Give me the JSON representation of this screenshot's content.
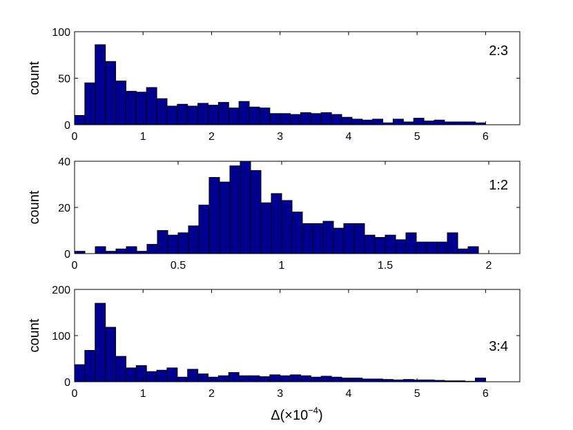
{
  "figure": {
    "xlabel_main": "Δ(×10",
    "xlabel_exp": "−4",
    "xlabel_close": ")"
  },
  "chart_data": [
    {
      "type": "bar",
      "annotation": "2:3",
      "ylabel": "count",
      "xlim": [
        0,
        6.5
      ],
      "ylim": [
        0,
        100
      ],
      "xticks": [
        0,
        1,
        2,
        3,
        4,
        5,
        6
      ],
      "xtick_labels": [
        "0",
        "1",
        "2",
        "3",
        "4",
        "5",
        "6"
      ],
      "yticks": [
        0,
        50,
        100
      ],
      "ytick_labels": [
        "0",
        "50",
        "100"
      ],
      "bin_start": 0,
      "bin_width": 0.15,
      "values": [
        10,
        45,
        86,
        68,
        47,
        36,
        35,
        40,
        28,
        20,
        22,
        20,
        23,
        21,
        24,
        18,
        25,
        19,
        18,
        12,
        12,
        11,
        13,
        12,
        13,
        11,
        8,
        6,
        5,
        6,
        2,
        6,
        3,
        7,
        4,
        5,
        3,
        3,
        3,
        2
      ],
      "color": "#00008f",
      "edgecolor": "#000000"
    },
    {
      "type": "bar",
      "annotation": "1:2",
      "ylabel": "count",
      "xlim": [
        0,
        2.15
      ],
      "ylim": [
        0,
        40
      ],
      "xticks": [
        0,
        0.5,
        1,
        1.5,
        2
      ],
      "xtick_labels": [
        "0",
        "0.5",
        "1",
        "1.5",
        "2"
      ],
      "yticks": [
        0,
        20,
        40
      ],
      "ytick_labels": [
        "0",
        "20",
        "40"
      ],
      "bin_start": 0,
      "bin_width": 0.05,
      "values": [
        1,
        0,
        3,
        1,
        2,
        3,
        1,
        4,
        10,
        8,
        9,
        12,
        21,
        33,
        31,
        38,
        40,
        36,
        22,
        26,
        23,
        18,
        13,
        13,
        14,
        11,
        13,
        13,
        8,
        7,
        8,
        6,
        9,
        5,
        5,
        5,
        9,
        2,
        3
      ],
      "color": "#00008f",
      "edgecolor": "#000000"
    },
    {
      "type": "bar",
      "annotation": "3:4",
      "ylabel": "count",
      "xlabel": "Δ(×10−4)",
      "xlim": [
        0,
        6.5
      ],
      "ylim": [
        0,
        200
      ],
      "xticks": [
        0,
        1,
        2,
        3,
        4,
        5,
        6
      ],
      "xtick_labels": [
        "0",
        "1",
        "2",
        "3",
        "4",
        "5",
        "6"
      ],
      "yticks": [
        0,
        100,
        200
      ],
      "ytick_labels": [
        "0",
        "100",
        "200"
      ],
      "bin_start": 0,
      "bin_width": 0.15,
      "values": [
        37,
        68,
        170,
        118,
        55,
        30,
        35,
        22,
        25,
        30,
        10,
        27,
        17,
        10,
        13,
        20,
        13,
        13,
        11,
        15,
        13,
        15,
        13,
        10,
        12,
        10,
        8,
        8,
        6,
        6,
        5,
        4,
        5,
        4,
        4,
        3,
        2,
        2,
        1,
        8
      ],
      "color": "#00008f",
      "edgecolor": "#000000"
    }
  ]
}
